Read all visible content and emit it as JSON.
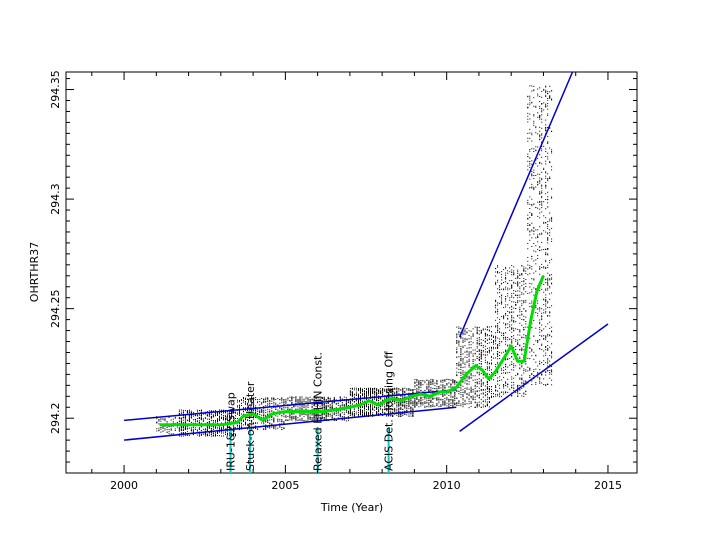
{
  "chart_data": {
    "type": "scatter",
    "title": "",
    "xlabel": "Time (Year)",
    "ylabel": "OHRTHR37",
    "xlim": [
      1998.2,
      2015.9
    ],
    "ylim": [
      294.175,
      294.358
    ],
    "xticks": [
      2000,
      2005,
      2010,
      2015
    ],
    "xtick_labels": [
      "2000",
      "2005",
      "2010",
      "2015"
    ],
    "yticks": [
      294.2,
      294.25,
      294.3,
      294.35
    ],
    "ytick_labels": [
      "294.2",
      "294.25",
      "294.3",
      "294.35"
    ],
    "grid": false,
    "legend": "none",
    "colors": {
      "points": "#000000",
      "trend": "#00dd00",
      "envelope": "#0000cc",
      "event_line": "#00cccc"
    },
    "events": [
      {
        "x": 2003.3,
        "label": "IRU-1&2 Swap"
      },
      {
        "x": 2003.9,
        "label": "Stuck-on Heater"
      },
      {
        "x": 2006.0,
        "label": "Relaxed EPHIN Const."
      },
      {
        "x": 2008.2,
        "label": "ACIS Det. Housing Off"
      }
    ],
    "series": [
      {
        "type": "line",
        "role": "moving-average",
        "x": [
          2001.1,
          2001.5,
          2002.0,
          2002.5,
          2003.0,
          2003.5,
          2003.7,
          2004.0,
          2004.3,
          2004.6,
          2005.0,
          2005.4,
          2005.8,
          2006.2,
          2006.6,
          2007.0,
          2007.3,
          2007.6,
          2007.9,
          2008.1,
          2008.3,
          2008.6,
          2008.9,
          2009.2,
          2009.5,
          2009.8,
          2010.0,
          2010.3,
          2010.6,
          2010.9,
          2011.1,
          2011.3,
          2011.5,
          2011.8,
          2012.0,
          2012.2,
          2012.4,
          2012.6,
          2012.8,
          2013.0
        ],
        "y": [
          294.197,
          294.197,
          294.197,
          294.197,
          294.197,
          294.198,
          294.201,
          294.202,
          294.199,
          294.202,
          294.203,
          294.203,
          294.203,
          294.203,
          294.204,
          294.205,
          294.206,
          294.208,
          294.206,
          294.208,
          294.209,
          294.208,
          294.21,
          294.211,
          294.21,
          294.212,
          294.212,
          294.214,
          294.22,
          294.224,
          294.222,
          294.218,
          294.221,
          294.228,
          294.233,
          294.226,
          294.226,
          294.244,
          294.258,
          294.265
        ]
      },
      {
        "type": "line",
        "role": "upper-envelope",
        "x": [
          2000.0,
          2010.3
        ],
        "y": [
          294.199,
          294.213
        ]
      },
      {
        "type": "line",
        "role": "lower-envelope",
        "x": [
          2000.0,
          2010.3
        ],
        "y": [
          294.19,
          294.205
        ]
      },
      {
        "type": "line",
        "role": "upper-envelope-recent",
        "x": [
          2010.4,
          2013.9
        ],
        "y": [
          294.237,
          294.358
        ]
      },
      {
        "type": "line",
        "role": "lower-envelope-recent",
        "x": [
          2010.4,
          2015.0
        ],
        "y": [
          294.194,
          294.243
        ]
      }
    ],
    "scatter_bands": [
      {
        "x": [
          2001.0,
          2001.7
        ],
        "y": [
          294.193,
          294.201
        ],
        "density": 8
      },
      {
        "x": [
          2001.7,
          2003.5
        ],
        "y": [
          294.192,
          294.204
        ],
        "density": 26
      },
      {
        "x": [
          2003.5,
          2005.0
        ],
        "y": [
          294.195,
          294.21
        ],
        "density": 24
      },
      {
        "x": [
          2005.0,
          2007.0
        ],
        "y": [
          294.199,
          294.21
        ],
        "density": 32
      },
      {
        "x": [
          2007.0,
          2009.0
        ],
        "y": [
          294.201,
          294.214
        ],
        "density": 40
      },
      {
        "x": [
          2009.0,
          2010.3
        ],
        "y": [
          294.205,
          294.218
        ],
        "density": 26
      },
      {
        "x": [
          2010.3,
          2011.5
        ],
        "y": [
          294.205,
          294.242
        ],
        "density": 40
      },
      {
        "x": [
          2011.5,
          2012.5
        ],
        "y": [
          294.21,
          294.27
        ],
        "density": 50
      },
      {
        "x": [
          2012.5,
          2013.3
        ],
        "y": [
          294.215,
          294.352
        ],
        "density": 80
      }
    ]
  }
}
